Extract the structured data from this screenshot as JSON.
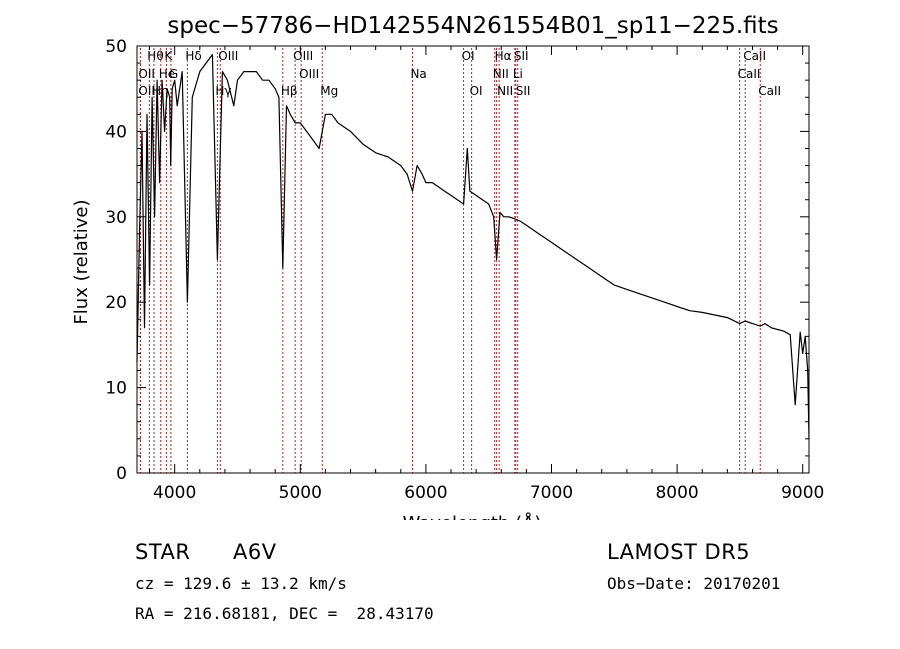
{
  "chart_data": {
    "type": "line",
    "title": "spec−57786−HD142554N261554B01_sp11−225.fits",
    "xlabel": "Wavelength (Å)",
    "ylabel": "Flux (relative)",
    "xlim": [
      3700,
      9050
    ],
    "ylim": [
      0,
      50
    ],
    "grid": false,
    "x_ticks": [
      4000,
      5000,
      6000,
      7000,
      8000,
      9000
    ],
    "y_ticks": [
      0,
      10,
      20,
      30,
      40,
      50
    ],
    "series": [
      {
        "x": [
          3700,
          3720,
          3740,
          3760,
          3780,
          3800,
          3820,
          3840,
          3860,
          3880,
          3900,
          3920,
          3940,
          3960,
          3968,
          3980,
          4000,
          4020,
          4060,
          4101,
          4140,
          4200,
          4250,
          4300,
          4340,
          4380,
          4420,
          4471,
          4500,
          4550,
          4600,
          4650,
          4700,
          4750,
          4800,
          4830,
          4861,
          4890,
          4920,
          4960,
          5000,
          5050,
          5100,
          5150,
          5200,
          5250,
          5300,
          5400,
          5500,
          5600,
          5700,
          5800,
          5850,
          5893,
          5930,
          5970,
          6000,
          6050,
          6100,
          6150,
          6200,
          6250,
          6300,
          6330,
          6350,
          6400,
          6450,
          6500,
          6540,
          6563,
          6590,
          6620,
          6660,
          6700,
          6750,
          6800,
          6900,
          7000,
          7100,
          7200,
          7300,
          7400,
          7500,
          7600,
          7700,
          7800,
          7900,
          8000,
          8100,
          8200,
          8300,
          8400,
          8498,
          8542,
          8600,
          8662,
          8700,
          8750,
          8800,
          8850,
          8900,
          8940,
          8980,
          9000,
          9020,
          9040,
          9050
        ],
        "y": [
          13,
          28,
          40,
          17,
          42,
          22,
          44,
          30,
          46,
          34,
          46,
          40,
          45,
          44,
          36,
          45,
          46,
          43,
          47,
          20,
          44,
          47,
          48,
          49,
          25,
          47,
          46,
          43,
          46,
          47,
          47,
          47,
          46,
          46,
          45,
          44,
          24,
          43,
          42,
          41,
          41,
          40,
          39,
          38,
          42,
          42,
          41,
          40,
          38.5,
          37.5,
          37,
          36,
          35,
          33,
          36,
          35,
          34,
          34,
          33.5,
          33,
          32.5,
          32,
          31.5,
          38,
          33,
          32.5,
          32,
          31.5,
          30,
          25,
          30.5,
          30,
          30,
          29.8,
          29.5,
          29,
          28,
          27,
          26,
          25,
          24,
          23,
          22,
          21.5,
          21,
          20.5,
          20,
          19.5,
          19,
          18.8,
          18.5,
          18.2,
          17.5,
          17.8,
          17.5,
          17.2,
          17.5,
          17,
          16.8,
          16.6,
          16.2,
          8,
          16.5,
          14,
          16,
          12,
          4
        ]
      }
    ],
    "line_markers": [
      {
        "label": "Hθ",
        "x": 3798,
        "row": 0
      },
      {
        "label": "K",
        "x": 3934,
        "row": 0
      },
      {
        "label": "Hδ",
        "x": 4101,
        "row": 0
      },
      {
        "label": "OII",
        "x": 3727,
        "row": 1
      },
      {
        "label": "He",
        "x": 3889,
        "row": 1
      },
      {
        "label": "G",
        "x": 3970,
        "row": 1
      },
      {
        "label": "OII",
        "x": 3727,
        "row": 2
      },
      {
        "label": "Hη",
        "x": 3835,
        "row": 2
      },
      {
        "label": "OIII",
        "x": 4363,
        "row": 0
      },
      {
        "label": "Hγ",
        "x": 4340,
        "row": 2
      },
      {
        "label": "OIII",
        "x": 4959,
        "row": 0
      },
      {
        "label": "OIII",
        "x": 5007,
        "row": 1
      },
      {
        "label": "Hβ",
        "x": 4861,
        "row": 2
      },
      {
        "label": "Mg",
        "x": 5175,
        "row": 2
      },
      {
        "label": "Na",
        "x": 5893,
        "row": 1
      },
      {
        "label": "OI",
        "x": 6300,
        "row": 0
      },
      {
        "label": "OI",
        "x": 6364,
        "row": 2
      },
      {
        "label": "Hα",
        "x": 6563,
        "row": 0
      },
      {
        "label": "SII",
        "x": 6716,
        "row": 0
      },
      {
        "label": "NII",
        "x": 6548,
        "row": 1
      },
      {
        "label": "Li",
        "x": 6708,
        "row": 1
      },
      {
        "label": "NII",
        "x": 6583,
        "row": 2
      },
      {
        "label": "SII",
        "x": 6731,
        "row": 2
      },
      {
        "label": "CaII",
        "x": 8542,
        "row": 0
      },
      {
        "label": "CaII",
        "x": 8498,
        "row": 1
      },
      {
        "label": "CaII",
        "x": 8662,
        "row": 2
      }
    ]
  },
  "info": {
    "class_label": "STAR",
    "subclass": "A6V",
    "survey": "LAMOST DR5",
    "redshift": "cz = 129.6 ± 13.2 km/s",
    "obs_date": "Obs−Date: 20170201",
    "coords": "RA = 216.68181, DEC =  28.43170"
  },
  "colors": {
    "spectrum": "#000000",
    "marker_line": "#c02020",
    "axes": "#000000"
  }
}
